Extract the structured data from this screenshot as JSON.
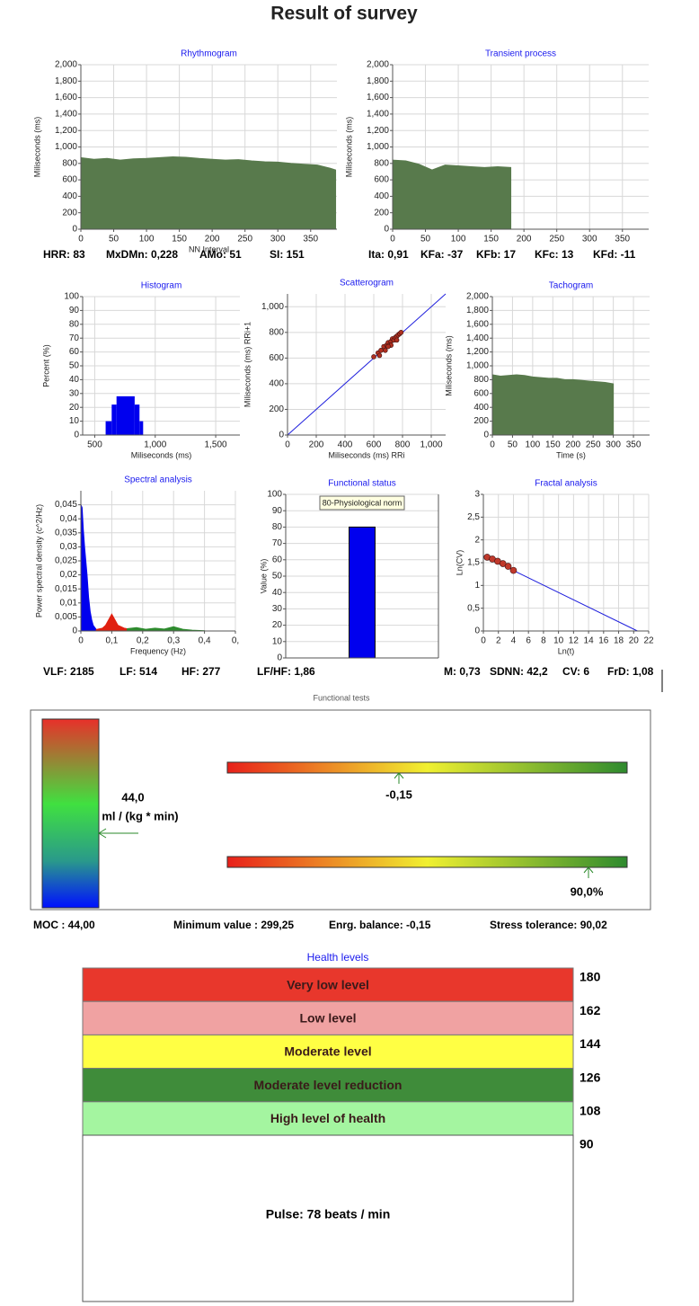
{
  "title": "Result of survey",
  "chart_data": [
    {
      "type": "area",
      "title": "Rhythmogram",
      "x_label": "NN Interval",
      "y_label": "Miliseconds (ms)",
      "series": [
        {
          "color": "#587a4c",
          "x": [
            0,
            20,
            40,
            60,
            80,
            100,
            120,
            140,
            160,
            180,
            200,
            220,
            240,
            260,
            280,
            300,
            320,
            340,
            360,
            380,
            388
          ],
          "values": [
            870,
            850,
            860,
            840,
            855,
            860,
            870,
            880,
            875,
            860,
            850,
            840,
            845,
            830,
            820,
            815,
            800,
            790,
            780,
            740,
            720
          ]
        }
      ],
      "xlim": [
        0,
        390
      ],
      "xticks": [
        0,
        50,
        100,
        150,
        200,
        250,
        300,
        350
      ],
      "ylim": [
        0,
        2000
      ],
      "yticks": [
        0,
        200,
        400,
        600,
        800,
        {
          "value": 1000,
          "label": "1,000"
        },
        {
          "value": 1200,
          "label": "1,200"
        },
        {
          "value": 1400,
          "label": "1,400"
        },
        {
          "value": 1600,
          "label": "1,600"
        },
        {
          "value": 1800,
          "label": "1,800"
        },
        {
          "value": 2000,
          "label": "2,000"
        }
      ],
      "grid": true,
      "stats": [
        "HRR: 83",
        "MxDMn: 0,228",
        "AMo: 51",
        "SI: 151"
      ]
    },
    {
      "type": "area",
      "title": "Transient process",
      "y_label": "Miliseconds (ms)",
      "series": [
        {
          "color": "#587a4c",
          "x": [
            0,
            20,
            40,
            60,
            80,
            100,
            120,
            140,
            160,
            180
          ],
          "values": [
            840,
            830,
            790,
            720,
            780,
            770,
            760,
            750,
            760,
            750
          ]
        }
      ],
      "xlim": [
        0,
        390
      ],
      "xticks": [
        0,
        50,
        100,
        150,
        200,
        250,
        300,
        350
      ],
      "ylim": [
        0,
        2000
      ],
      "yticks": [
        0,
        200,
        400,
        600,
        800,
        {
          "value": 1000,
          "label": "1,000"
        },
        {
          "value": 1200,
          "label": "1,200"
        },
        {
          "value": 1400,
          "label": "1,400"
        },
        {
          "value": 1600,
          "label": "1,600"
        },
        {
          "value": 1800,
          "label": "1,800"
        },
        {
          "value": 2000,
          "label": "2,000"
        }
      ],
      "grid": true,
      "stats": [
        "Ita: 0,91",
        "KFa: -37",
        "KFb: 17",
        "KFc: 13",
        "KFd: -11"
      ]
    },
    {
      "type": "histogram",
      "title": "Histogram",
      "x_label": "Miliseconds (ms)",
      "y_label": "Percent (%)",
      "color": "#0000ee",
      "bins": [
        590,
        640,
        680,
        830,
        870,
        900
      ],
      "values": [
        10,
        22,
        28,
        22,
        10
      ],
      "xlim": [
        400,
        1700
      ],
      "xticks": [
        500,
        {
          "value": 1000,
          "label": "1,000"
        },
        {
          "value": 1500,
          "label": "1,500"
        }
      ],
      "ylim": [
        0,
        100
      ],
      "yticks": [
        0,
        10,
        20,
        30,
        40,
        50,
        60,
        70,
        80,
        90,
        100
      ],
      "grid": true
    },
    {
      "type": "scatter",
      "title": "Scatterogram",
      "x_label": "Miliseconds (ms) RRi",
      "y_label": "Miliseconds (ms) RRi+1",
      "diagonal": true,
      "series": [
        {
          "color": "#b03020",
          "mode": "markers",
          "x": [
            600,
            630,
            650,
            670,
            690,
            700,
            710,
            720,
            730,
            740,
            750,
            760,
            770,
            780,
            790,
            640,
            680,
            720,
            760,
            700
          ],
          "values": [
            610,
            640,
            660,
            690,
            700,
            720,
            700,
            730,
            750,
            740,
            760,
            770,
            780,
            790,
            800,
            620,
            660,
            700,
            740,
            690
          ]
        }
      ],
      "xlim": [
        0,
        1100
      ],
      "xticks": [
        0,
        200,
        400,
        600,
        800,
        {
          "value": 1000,
          "label": "1,000"
        }
      ],
      "ylim": [
        0,
        1100
      ],
      "yticks": [
        0,
        200,
        400,
        600,
        800,
        {
          "value": 1000,
          "label": "1,000"
        }
      ],
      "grid": true
    },
    {
      "type": "area",
      "title": "Tachogram",
      "x_label": "Time (s)",
      "y_label": "Miliseconds (ms)",
      "series": [
        {
          "color": "#587a4c",
          "x": [
            0,
            20,
            40,
            60,
            80,
            100,
            120,
            140,
            160,
            180,
            200,
            220,
            240,
            260,
            280,
            300
          ],
          "values": [
            870,
            850,
            860,
            870,
            860,
            840,
            830,
            820,
            820,
            800,
            800,
            790,
            780,
            770,
            760,
            740
          ]
        }
      ],
      "xlim": [
        0,
        390
      ],
      "xticks": [
        0,
        50,
        100,
        150,
        200,
        250,
        300,
        350
      ],
      "ylim": [
        0,
        2000
      ],
      "yticks": [
        0,
        200,
        400,
        600,
        800,
        {
          "value": 1000,
          "label": "1,000"
        },
        {
          "value": 1200,
          "label": "1,200"
        },
        {
          "value": 1400,
          "label": "1,400"
        },
        {
          "value": 1600,
          "label": "1,600"
        },
        {
          "value": 1800,
          "label": "1,800"
        },
        {
          "value": 2000,
          "label": "2,000"
        }
      ],
      "grid": true
    },
    {
      "type": "area",
      "title": "Spectral analysis",
      "x_label": "Frequency (Hz)",
      "y_label": "Power spectral density (c^2/Hz)",
      "series": [
        {
          "color": "#0000ee",
          "x": [
            0,
            0.004,
            0.008,
            0.012,
            0.016,
            0.02,
            0.025,
            0.03,
            0.035,
            0.04,
            0.05
          ],
          "values": [
            0.045,
            0.044,
            0.036,
            0.03,
            0.025,
            0.02,
            0.012,
            0.007,
            0.004,
            0.002,
            0.0005
          ]
        },
        {
          "color": "#e02010",
          "x": [
            0.05,
            0.07,
            0.08,
            0.09,
            0.1,
            0.11,
            0.12,
            0.14,
            0.15
          ],
          "values": [
            0.0005,
            0.001,
            0.002,
            0.004,
            0.006,
            0.004,
            0.002,
            0.001,
            0.0008
          ]
        },
        {
          "color": "#2e8b2e",
          "x": [
            0.15,
            0.18,
            0.21,
            0.24,
            0.27,
            0.3,
            0.33,
            0.36,
            0.4
          ],
          "values": [
            0.0008,
            0.0012,
            0.0006,
            0.001,
            0.0007,
            0.0015,
            0.0006,
            0.0003,
            0.0001
          ]
        }
      ],
      "xlim": [
        0,
        0.5
      ],
      "xticks": [
        0,
        {
          "value": 0.1,
          "label": "0,1"
        },
        {
          "value": 0.2,
          "label": "0,2"
        },
        {
          "value": 0.3,
          "label": "0,3"
        },
        {
          "value": 0.4,
          "label": "0,4"
        },
        {
          "value": 0.5,
          "label": "0,"
        }
      ],
      "ylim": [
        0,
        0.05
      ],
      "yticks": [
        0,
        {
          "value": 0.005,
          "label": "0,005"
        },
        {
          "value": 0.01,
          "label": "0,01"
        },
        {
          "value": 0.015,
          "label": "0,015"
        },
        {
          "value": 0.02,
          "label": "0,02"
        },
        {
          "value": 0.025,
          "label": "0,025"
        },
        {
          "value": 0.03,
          "label": "0,03"
        },
        {
          "value": 0.035,
          "label": "0,035"
        },
        {
          "value": 0.04,
          "label": "0,04"
        },
        {
          "value": 0.045,
          "label": "0,045"
        }
      ],
      "grid": true,
      "stats": [
        "VLF: 2185",
        "LF: 514",
        "HF: 277"
      ]
    },
    {
      "type": "bar",
      "title": "Functional status",
      "y_label": "Value (%)",
      "color": "#0000ee",
      "categories": [
        null
      ],
      "values": [
        80
      ],
      "annotation": "80-Physiological norm",
      "ylim": [
        0,
        100
      ],
      "yticks": [
        0,
        10,
        20,
        30,
        40,
        50,
        60,
        70,
        80,
        90,
        100
      ],
      "grid": true,
      "stats": [
        "LF/HF: 1,86"
      ]
    },
    {
      "type": "scatter",
      "title": "Fractal analysis",
      "x_label": "Ln(t)",
      "y_label": "Ln(CV)",
      "series": [
        {
          "color": "#2020dd",
          "mode": "line",
          "x": [
            0,
            20.5
          ],
          "values": [
            1.65,
            0
          ]
        },
        {
          "color": "#c0392b",
          "mode": "markers",
          "x": [
            0.5,
            1.2,
            1.9,
            2.6,
            3.3,
            4
          ],
          "values": [
            1.62,
            1.58,
            1.53,
            1.48,
            1.42,
            1.33
          ]
        }
      ],
      "xlim": [
        0,
        22
      ],
      "xticks": [
        0,
        2,
        4,
        6,
        8,
        10,
        12,
        14,
        16,
        18,
        20,
        22
      ],
      "ylim": [
        0,
        3
      ],
      "yticks": [
        0,
        {
          "value": 0.5,
          "label": "0,5"
        },
        1,
        {
          "value": 1.5,
          "label": "1,5"
        },
        2,
        {
          "value": 2.5,
          "label": "2,5"
        },
        3
      ],
      "grid": true,
      "stats": [
        "M: 0,73",
        "SDNN: 42,2",
        "CV: 6",
        "FrD: 1,08"
      ]
    }
  ],
  "functional_tests": {
    "title": "Functional tests",
    "moc_value": "44,0",
    "moc_unit": "ml / (kg * min)",
    "energy_marker": "-0,15",
    "stress_marker": "90,0%",
    "summary": [
      "MOC : 44,00",
      "Minimum value  : 299,25",
      "Enrg. balance: -0,15",
      "Stress tolerance: 90,02"
    ]
  },
  "health_levels": {
    "title": "Health levels",
    "levels": [
      {
        "label": "Very low level",
        "color": "#e8372c"
      },
      {
        "label": "Low level",
        "color": "#f0a2a2"
      },
      {
        "label": "Moderate level",
        "color": "#ffff44"
      },
      {
        "label": "Moderate level reduction",
        "color": "#3f8c3a"
      },
      {
        "label": "High level of health",
        "color": "#a4f5a0"
      }
    ],
    "scale": [
      180,
      162,
      144,
      126,
      108,
      90
    ],
    "pulse": "Pulse: 78 beats / min"
  }
}
